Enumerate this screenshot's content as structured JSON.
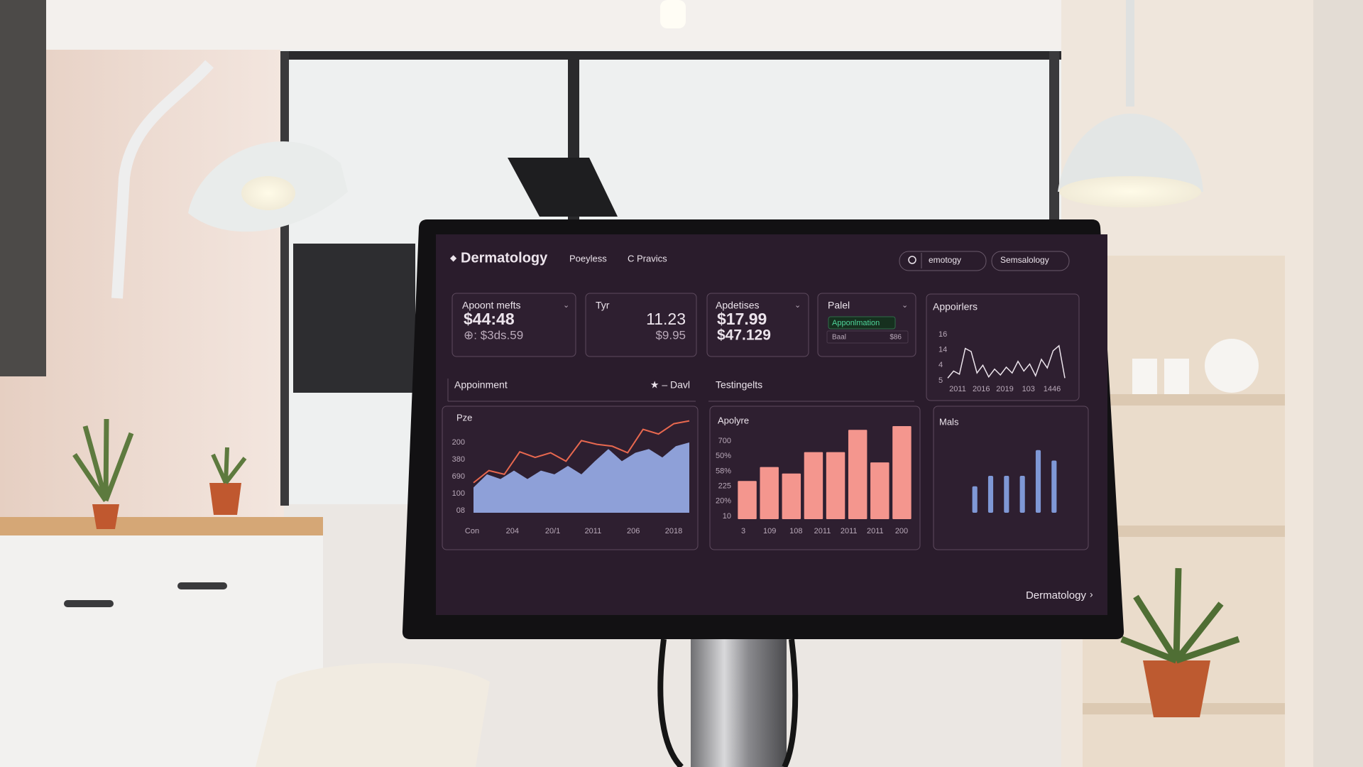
{
  "header": {
    "title": "Dermatology",
    "nav": [
      "Poeyless",
      "C Pravics"
    ],
    "search": "emotogy",
    "profile": "Semsalology"
  },
  "cards": [
    {
      "label": "Apoont mefts",
      "value": "$44:48",
      "sub": "⊕: $3ds.59"
    },
    {
      "label": "Tyr",
      "value": "11.23",
      "sub": "$9.95"
    },
    {
      "label": "Apdetises",
      "value": "$17.99",
      "sub": "$47.129"
    },
    {
      "label": "Palel",
      "chip": "Apponlmation",
      "row": [
        "Baal",
        "$86"
      ]
    }
  ],
  "spark": {
    "title": "Appoirlers",
    "color": "#ece4ec",
    "ylim": [
      0,
      100
    ],
    "y_labels": [
      "16",
      "14",
      "4",
      "5"
    ],
    "x_labels": [
      "2011",
      "2016",
      "2019",
      "103",
      "1446"
    ],
    "values": [
      12,
      30,
      22,
      88,
      80,
      25,
      45,
      15,
      35,
      20,
      40,
      25,
      55,
      30,
      48,
      18,
      60,
      38,
      82,
      95,
      12
    ]
  },
  "sections": [
    "Appoinment",
    "★ – Davl",
    "Testingelts"
  ],
  "charts": [
    {
      "type": "area",
      "title": "Pze",
      "ylim": [
        0,
        100
      ],
      "y_labels": [
        "200",
        "380",
        "690",
        "100",
        "08"
      ],
      "x_labels": [
        "Con",
        "204",
        "20/1",
        "2011",
        "206",
        "2018"
      ],
      "series": [
        {
          "type": "area",
          "color": "#8ea0d8",
          "values": [
            27,
            41,
            36,
            45,
            36,
            45,
            41,
            50,
            41,
            55,
            68,
            55,
            64,
            68,
            59,
            71,
            75
          ]
        },
        {
          "type": "line",
          "color": "#e8684f",
          "values": [
            32,
            45,
            41,
            65,
            59,
            64,
            55,
            77,
            73,
            71,
            64,
            89,
            84,
            95,
            98
          ]
        }
      ]
    },
    {
      "type": "bar",
      "title": "Apolyre",
      "color": "#f4968e",
      "ylim": [
        0,
        100
      ],
      "y_labels": [
        "700",
        "50%",
        "58%",
        "225",
        "20%",
        "10"
      ],
      "x_labels": [
        "3",
        "109",
        "108",
        "2011",
        "2011",
        "2011",
        "200"
      ],
      "values": [
        41,
        56,
        49,
        72,
        72,
        96,
        61,
        100
      ]
    },
    {
      "type": "bar",
      "title": "Mals",
      "color": "#7f98d6",
      "ylim": [
        0,
        100
      ],
      "values": [
        38,
        53,
        53,
        53,
        90,
        75
      ]
    }
  ],
  "footer": "Dermatology"
}
